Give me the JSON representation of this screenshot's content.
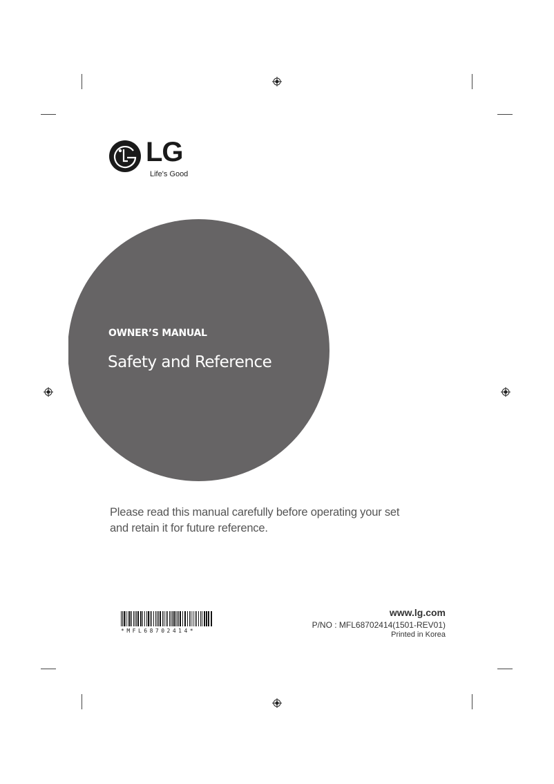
{
  "brand": {
    "logo_text": "LG",
    "tagline": "Life's Good"
  },
  "cover": {
    "subtitle": "OWNER’S MANUAL",
    "title": "Safety and Reference",
    "circle_color": "#666465"
  },
  "intro": "Please read this manual carefully before operating your set and retain it for future reference.",
  "barcode_text": "*MFL68702414*",
  "footer": {
    "url": "www.lg.com",
    "part_number": "P/NO : MFL68702414(1501-REV01)",
    "printed": "Printed in Korea"
  }
}
